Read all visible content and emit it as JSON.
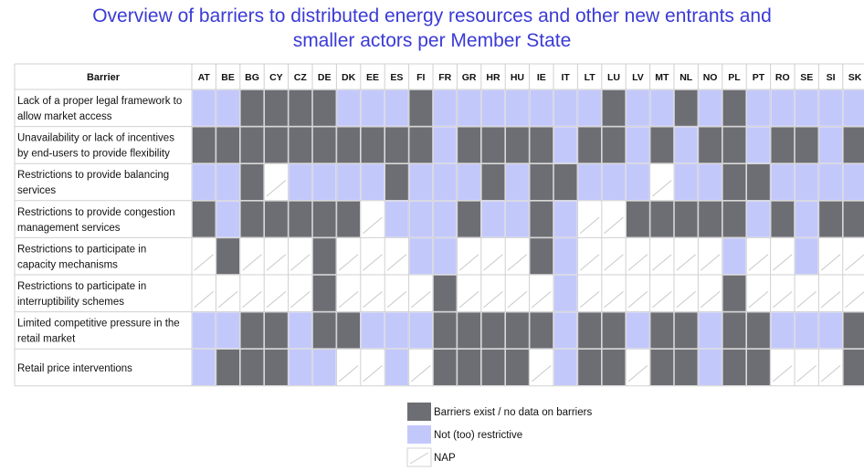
{
  "title": {
    "line1": "Overview of barriers to distributed energy resources and other new entrants and",
    "line2": "smaller actors per Member State"
  },
  "colors": {
    "barrier": "#6d6d74",
    "not_restrictive": "#c3c8fb",
    "nap": "#ffffff",
    "grid": "#d0d0d0",
    "title": "#3a3ad6"
  },
  "chart_data": {
    "type": "heatmap",
    "row_header": "Barrier",
    "columns": [
      "AT",
      "BE",
      "BG",
      "CY",
      "CZ",
      "DE",
      "DK",
      "EE",
      "ES",
      "FI",
      "FR",
      "GR",
      "HR",
      "HU",
      "IE",
      "IT",
      "LT",
      "LU",
      "LV",
      "MT",
      "NL",
      "NO",
      "PL",
      "PT",
      "RO",
      "SE",
      "SI",
      "SK"
    ],
    "rows": [
      {
        "label": "Lack of a proper legal framework to allow market access",
        "values": [
          "N",
          "N",
          "B",
          "B",
          "B",
          "B",
          "N",
          "N",
          "N",
          "B",
          "N",
          "N",
          "N",
          "N",
          "N",
          "N",
          "N",
          "B",
          "N",
          "N",
          "B",
          "N",
          "B",
          "N",
          "N",
          "N",
          "N",
          "N"
        ]
      },
      {
        "label": "Unavailability or lack of incentives by end-users to provide flexibility",
        "values": [
          "B",
          "B",
          "B",
          "B",
          "B",
          "B",
          "B",
          "B",
          "B",
          "B",
          "N",
          "B",
          "B",
          "B",
          "B",
          "N",
          "B",
          "B",
          "N",
          "B",
          "N",
          "B",
          "B",
          "N",
          "B",
          "B",
          "N",
          "B"
        ]
      },
      {
        "label": "Restrictions to provide balancing services",
        "values": [
          "N",
          "N",
          "B",
          "X",
          "N",
          "N",
          "N",
          "N",
          "B",
          "N",
          "N",
          "N",
          "B",
          "N",
          "B",
          "B",
          "N",
          "N",
          "N",
          "X",
          "N",
          "N",
          "B",
          "B",
          "N",
          "N",
          "N",
          "N"
        ]
      },
      {
        "label": "Restrictions to provide congestion management services",
        "values": [
          "B",
          "N",
          "B",
          "B",
          "B",
          "B",
          "B",
          "X",
          "N",
          "N",
          "N",
          "B",
          "N",
          "N",
          "B",
          "N",
          "X",
          "X",
          "B",
          "B",
          "B",
          "B",
          "B",
          "N",
          "B",
          "N",
          "B",
          "B"
        ]
      },
      {
        "label": "Restrictions to participate in capacity mechanisms",
        "values": [
          "X",
          "B",
          "X",
          "X",
          "X",
          "B",
          "X",
          "X",
          "X",
          "N",
          "N",
          "X",
          "X",
          "X",
          "B",
          "N",
          "X",
          "X",
          "X",
          "X",
          "X",
          "X",
          "N",
          "X",
          "X",
          "N",
          "X",
          "X"
        ]
      },
      {
        "label": "Restrictions to participate in interruptibility schemes",
        "values": [
          "X",
          "X",
          "X",
          "X",
          "X",
          "B",
          "X",
          "X",
          "X",
          "X",
          "B",
          "X",
          "X",
          "X",
          "X",
          "N",
          "X",
          "X",
          "X",
          "X",
          "X",
          "X",
          "B",
          "X",
          "X",
          "X",
          "X",
          "X"
        ]
      },
      {
        "label": "Limited competitive pressure in the retail market",
        "values": [
          "N",
          "N",
          "B",
          "B",
          "N",
          "B",
          "B",
          "N",
          "N",
          "N",
          "B",
          "B",
          "B",
          "B",
          "B",
          "N",
          "B",
          "B",
          "N",
          "B",
          "B",
          "N",
          "B",
          "B",
          "N",
          "N",
          "N",
          "B"
        ]
      },
      {
        "label": "Retail price interventions",
        "values": [
          "N",
          "B",
          "B",
          "B",
          "N",
          "N",
          "X",
          "X",
          "N",
          "X",
          "B",
          "B",
          "B",
          "B",
          "X",
          "N",
          "B",
          "B",
          "X",
          "B",
          "B",
          "N",
          "B",
          "B",
          "X",
          "X",
          "X",
          "B"
        ]
      }
    ],
    "legend": [
      {
        "key": "B",
        "label": "Barriers exist / no data on barriers"
      },
      {
        "key": "N",
        "label": "Not (too) restrictive"
      },
      {
        "key": "X",
        "label": "NAP"
      }
    ]
  }
}
